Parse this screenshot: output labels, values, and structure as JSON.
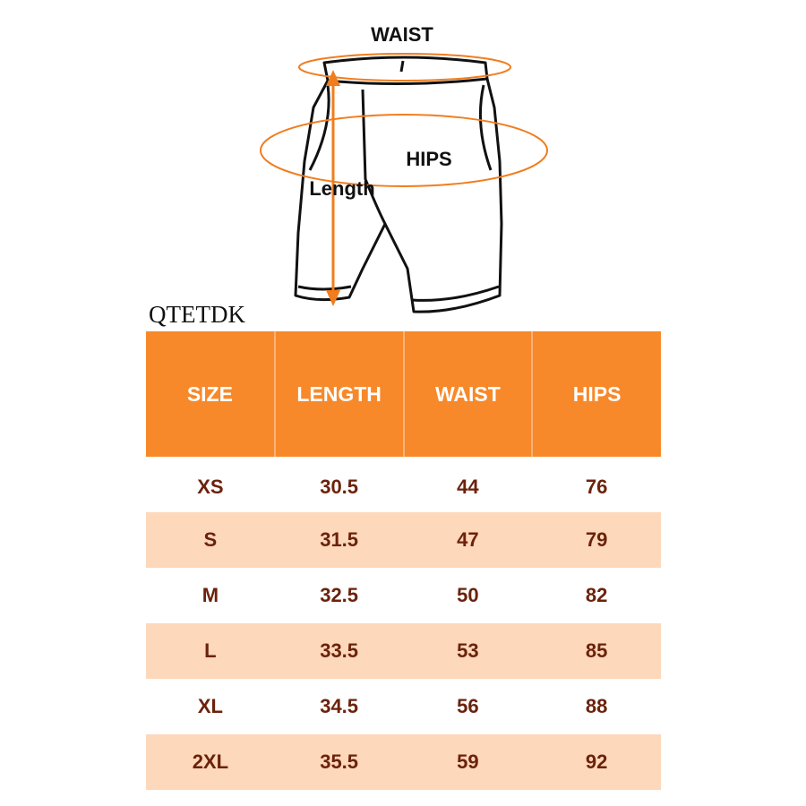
{
  "diagram": {
    "waist_label": "WAIST",
    "hips_label": "HIPS",
    "length_label": "Length"
  },
  "brand": "QTETDK",
  "table": {
    "header": [
      "SIZE",
      "LENGTH",
      "WAIST",
      "HIPS"
    ],
    "rows": [
      [
        "XS",
        30.5,
        44,
        76
      ],
      [
        "S",
        31.5,
        47,
        79
      ],
      [
        "M",
        32.5,
        50,
        82
      ],
      [
        "L",
        33.5,
        53,
        85
      ],
      [
        "XL",
        34.5,
        56,
        88
      ],
      [
        "2XL",
        35.5,
        59,
        92
      ]
    ]
  }
}
